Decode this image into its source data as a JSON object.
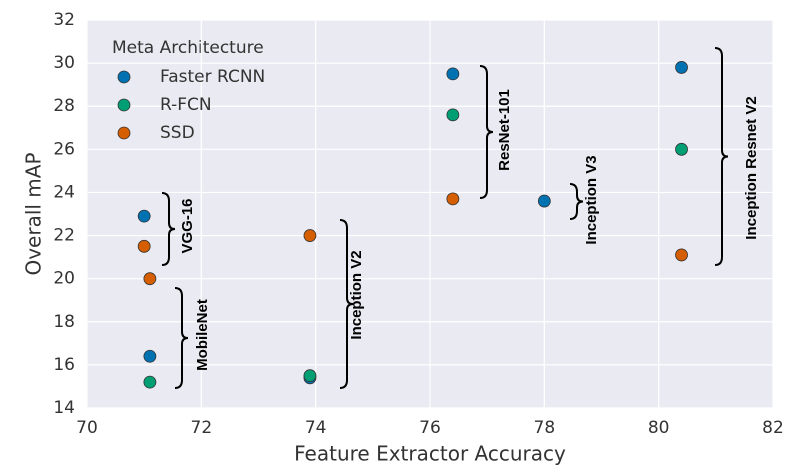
{
  "chart_data": {
    "type": "scatter",
    "xlabel": "Feature Extractor Accuracy",
    "ylabel": "Overall mAP",
    "legend_title": "Meta Architecture",
    "legend_position": "upper left",
    "grid": true,
    "xlim": [
      70,
      82
    ],
    "xticks": [
      70,
      72,
      74,
      76,
      78,
      80,
      82
    ],
    "ylim": [
      14,
      32
    ],
    "yticks": [
      14,
      16,
      18,
      20,
      22,
      24,
      26,
      28,
      30,
      32
    ],
    "series": [
      {
        "name": "Faster RCNN",
        "color": "#0072b2",
        "x": [
          71.0,
          71.1,
          73.9,
          76.4,
          78.0,
          80.4
        ],
        "values": [
          22.9,
          16.4,
          15.4,
          29.5,
          23.6,
          29.8
        ]
      },
      {
        "name": "R-FCN",
        "color": "#009e73",
        "x": [
          71.1,
          73.9,
          76.4,
          80.4
        ],
        "values": [
          15.2,
          15.5,
          27.6,
          26.0
        ]
      },
      {
        "name": "SSD",
        "color": "#d55e00",
        "x": [
          71.0,
          71.1,
          73.9,
          76.4,
          80.4
        ],
        "values": [
          21.5,
          20.0,
          22.0,
          23.7,
          21.1
        ]
      }
    ],
    "annotations": [
      "VGG-16",
      "MobileNet",
      "Inception V2",
      "ResNet-101",
      "Inception V3",
      "Inception Resnet V2"
    ]
  }
}
